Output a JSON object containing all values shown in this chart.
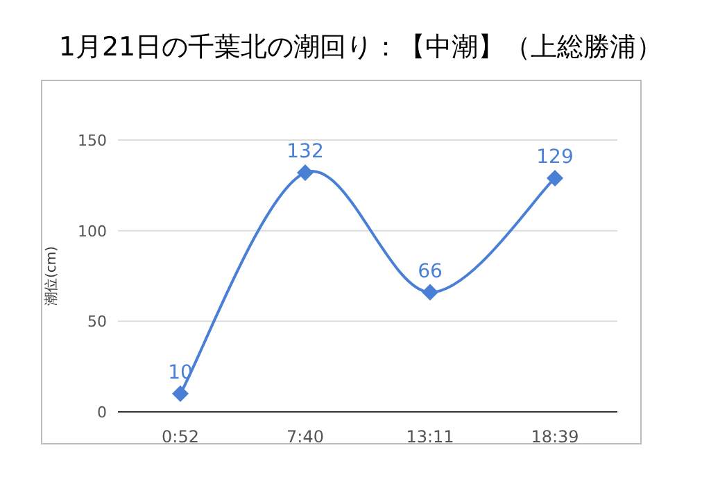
{
  "chart_data": {
    "type": "line",
    "title": "1月21日の千葉北の潮回り：【中潮】（上総勝浦）",
    "ylabel": "潮位(cm)",
    "categories": [
      "0:52",
      "7:40",
      "13:11",
      "18:39"
    ],
    "values": [
      10,
      132,
      66,
      129
    ],
    "color": "#4a7fd6",
    "ylim": [
      0,
      150
    ],
    "yticks": [
      0,
      50,
      100,
      150
    ],
    "grid": "y",
    "data_labels": true,
    "marker": "diamond"
  }
}
